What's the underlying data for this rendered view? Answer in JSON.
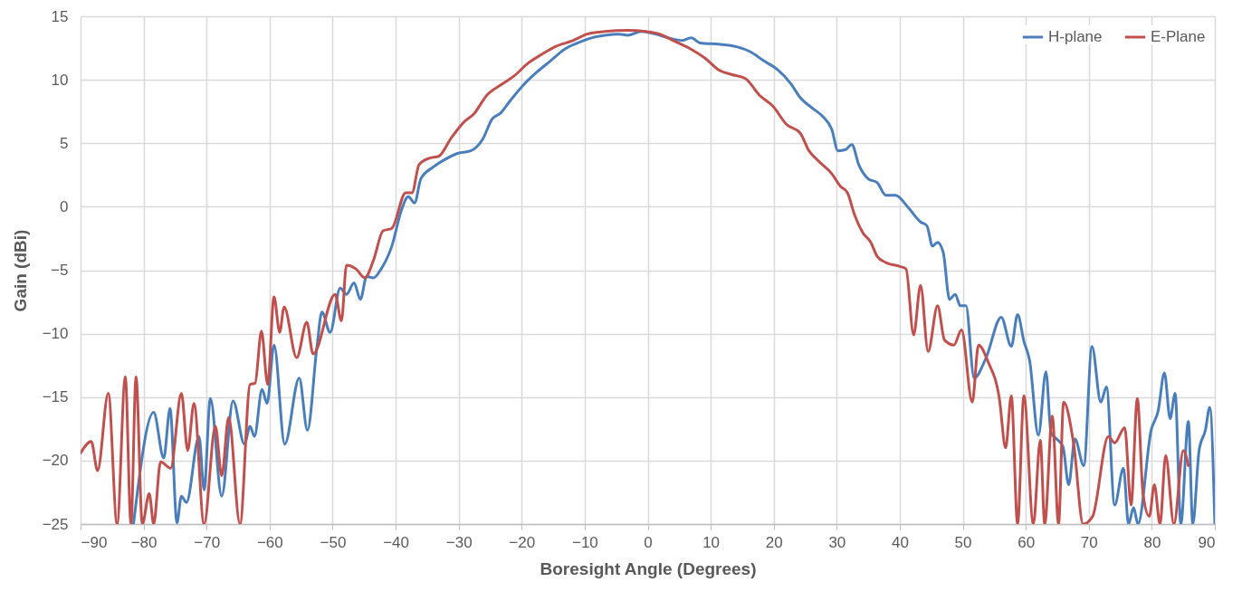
{
  "chart_data": {
    "type": "line",
    "xlabel": "Boresight Angle (Degrees)",
    "ylabel": "Gain (dBi)",
    "xlim": [
      -90,
      90
    ],
    "xticks": [
      -90,
      -80,
      -70,
      -60,
      -50,
      -40,
      -30,
      -20,
      -10,
      0,
      10,
      20,
      30,
      40,
      50,
      60,
      70,
      80,
      90
    ],
    "ylim": [
      -25,
      15
    ],
    "yticks": [
      -25,
      -20,
      -15,
      -10,
      -5,
      0,
      5,
      10,
      15
    ],
    "grid": true,
    "legend": "top right",
    "series": [
      {
        "name": "H-plane",
        "color": "#4a7ebb",
        "x": [
          -81.6,
          -78.4,
          -76.8,
          -75.8,
          -74.7,
          -74.0,
          -73.2,
          -71.2,
          -70.4,
          -69.4,
          -67.6,
          -65.8,
          -64.0,
          -63.1,
          -62.4,
          -61.2,
          -60.4,
          -59.3,
          -57.6,
          -55.3,
          -54.0,
          -52.5,
          -51.7,
          -50.4,
          -48.8,
          -47.8,
          -46.6,
          -45.6,
          -44.6,
          -43.5,
          -42.3,
          -40.6,
          -39.1,
          -38.0,
          -37.0,
          -36.0,
          -34.1,
          -31.9,
          -30.2,
          -28.1,
          -26.2,
          -24.7,
          -23.3,
          -21.9,
          -19.7,
          -17.6,
          -15.4,
          -13.2,
          -11.1,
          -8.9,
          -6.8,
          -4.6,
          -3.2,
          -1.0,
          1.2,
          3.3,
          5.5,
          6.9,
          8.3,
          11.2,
          14.1,
          16.3,
          18.4,
          20.6,
          22.7,
          24.2,
          26.3,
          27.8,
          29.2,
          30.2,
          31.4,
          32.4,
          33.5,
          35.0,
          36.4,
          37.8,
          39.3,
          41.4,
          43.3,
          44.3,
          45.2,
          46.0,
          46.9,
          47.9,
          48.8,
          49.6,
          50.5,
          51.8,
          53.7,
          56.1,
          57.7,
          58.7,
          59.7,
          60.6,
          62.0,
          63.2,
          64.0,
          64.9,
          65.9,
          66.8,
          67.8,
          69.2,
          70.5,
          71.9,
          72.8,
          74.1,
          75.5,
          76.3,
          77.1,
          77.8,
          79.9,
          81.0,
          82.0,
          82.9,
          83.7,
          84.6,
          85.8,
          86.5,
          87.5,
          88.5,
          89.2,
          90
        ],
        "values": [
          -25,
          -16.2,
          -19.8,
          -15.9,
          -24.9,
          -22.8,
          -23.3,
          -18.1,
          -22.3,
          -15.1,
          -22.8,
          -15.3,
          -18.7,
          -17.3,
          -18.1,
          -14.4,
          -15.5,
          -10.9,
          -18.7,
          -13.5,
          -17.6,
          -11.1,
          -8.3,
          -9.9,
          -6.4,
          -6.9,
          -6,
          -7.3,
          -5.5,
          -5.6,
          -4.9,
          -3.1,
          -0.3,
          0.8,
          0.3,
          2.2,
          3.1,
          3.8,
          4.2,
          4.4,
          5.3,
          6.9,
          7.4,
          8.3,
          9.6,
          10.6,
          11.5,
          12.4,
          12.9,
          13.3,
          13.5,
          13.6,
          13.5,
          13.8,
          13.6,
          13.3,
          13.1,
          13.3,
          12.9,
          12.8,
          12.6,
          12.2,
          11.5,
          10.8,
          9.7,
          8.6,
          7.7,
          7.1,
          6.1,
          4.4,
          4.5,
          4.9,
          3.3,
          2.2,
          1.9,
          0.9,
          0.9,
          -0.1,
          -1.2,
          -1.5,
          -3.1,
          -2.8,
          -3.6,
          -7.3,
          -6.9,
          -7.8,
          -7.8,
          -13.5,
          -11.9,
          -8.7,
          -11,
          -8.5,
          -10.6,
          -12.1,
          -18,
          -13,
          -17.8,
          -18.3,
          -18.9,
          -21.9,
          -18.3,
          -20.4,
          -11,
          -15.4,
          -14.2,
          -23.5,
          -20.6,
          -25,
          -23.7,
          -25,
          -17.6,
          -16.1,
          -13.1,
          -16.7,
          -14.7,
          -25,
          -16.9,
          -25,
          -19.2,
          -17.6,
          -15.8,
          -25
        ]
      },
      {
        "name": "E-Plane",
        "color": "#c0504d",
        "x": [
          -90,
          -88.3,
          -87.3,
          -85.6,
          -84.2,
          -82.9,
          -82.0,
          -81.2,
          -80.2,
          -79.1,
          -78.4,
          -77.3,
          -75.7,
          -74.0,
          -73.0,
          -72.0,
          -70.4,
          -68.6,
          -67.6,
          -66.5,
          -64.7,
          -63.1,
          -62.3,
          -61.3,
          -60.3,
          -59.3,
          -58.4,
          -57.7,
          -55.7,
          -54.1,
          -53.1,
          -49.6,
          -48.6,
          -47.8,
          -46.3,
          -44.9,
          -43.5,
          -42.0,
          -40.6,
          -38.4,
          -37.4,
          -36.3,
          -34.8,
          -33.1,
          -31.2,
          -29.1,
          -27.6,
          -25.5,
          -23.3,
          -21.2,
          -19.0,
          -16.8,
          -14.7,
          -11.8,
          -9.6,
          -6.8,
          -3.2,
          -0.3,
          1.9,
          4.0,
          6.9,
          9.1,
          11.2,
          13.4,
          15.5,
          17.7,
          19.9,
          22.0,
          24.2,
          25.6,
          27.1,
          29.2,
          30.6,
          31.7,
          32.8,
          34.2,
          35.4,
          36.4,
          37.8,
          40.0,
          41.0,
          42.2,
          43.3,
          44.5,
          46.0,
          47.1,
          48.6,
          49.8,
          51.5,
          52.5,
          54.0,
          55.8,
          56.8,
          57.7,
          58.7,
          59.7,
          61.2,
          62.3,
          63.0,
          64.2,
          65.2,
          66.0,
          67.6,
          69.1,
          70.6,
          73.1,
          74.1,
          75.7,
          76.7,
          77.7,
          78.6,
          79.6,
          80.4,
          81.3,
          82.2,
          83.5,
          85.0,
          85.8
        ],
        "values": [
          -19.4,
          -18.5,
          -20.8,
          -14.7,
          -25,
          -13.4,
          -25,
          -13.4,
          -25,
          -22.6,
          -25,
          -20.1,
          -20.6,
          -14.7,
          -19.2,
          -15.5,
          -25,
          -17.3,
          -21.2,
          -16.6,
          -25,
          -14,
          -13.9,
          -9.8,
          -14,
          -7.1,
          -9.9,
          -7.9,
          -11.9,
          -9.1,
          -11.6,
          -6.9,
          -9,
          -4.6,
          -4.9,
          -5.6,
          -4.2,
          -1.9,
          -1.7,
          1.1,
          1.1,
          3.3,
          3.8,
          4.0,
          5.4,
          6.7,
          7.3,
          8.8,
          9.6,
          10.3,
          11.3,
          12,
          12.6,
          13.1,
          13.6,
          13.8,
          13.9,
          13.8,
          13.6,
          13.1,
          12.4,
          11.7,
          10.8,
          10.4,
          10.1,
          8.8,
          7.9,
          6.5,
          5.8,
          4.4,
          3.6,
          2.6,
          1.6,
          1.1,
          -0.6,
          -2.1,
          -2.8,
          -3.9,
          -4.4,
          -4.7,
          -4.9,
          -10.1,
          -6.2,
          -11.4,
          -7.8,
          -10.5,
          -10.9,
          -9.7,
          -15.4,
          -10.9,
          -12.2,
          -15.1,
          -19,
          -14.9,
          -25,
          -14.9,
          -25,
          -18.4,
          -25,
          -16.5,
          -25,
          -15.4,
          -18.7,
          -25,
          -24.4,
          -18.1,
          -18.6,
          -17.4,
          -23.5,
          -15.1,
          -22.6,
          -24.4,
          -21.9,
          -25,
          -19.6,
          -25,
          -19.2,
          -20.4
        ]
      }
    ]
  }
}
